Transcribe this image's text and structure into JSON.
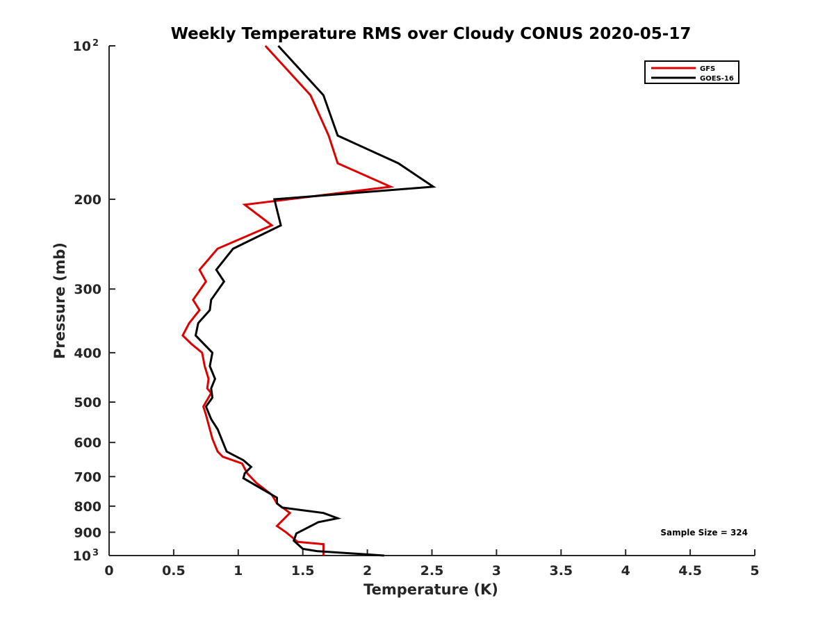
{
  "chart_data": {
    "type": "line",
    "title": "Weekly Temperature RMS over Cloudy CONUS 2020-05-17",
    "xlabel": "Temperature (K)",
    "ylabel": "Pressure (mb)",
    "xlim": [
      0,
      5
    ],
    "ylim": [
      100,
      1000
    ],
    "y_scale": "log",
    "y_reversed": true,
    "grid": false,
    "legend_position": "top-right",
    "x_ticks": [
      "0",
      "0.5",
      "1",
      "1.5",
      "2",
      "2.5",
      "3",
      "3.5",
      "4",
      "4.5",
      "5"
    ],
    "x_tick_values": [
      0,
      0.5,
      1,
      1.5,
      2,
      2.5,
      3,
      3.5,
      4,
      4.5,
      5
    ],
    "y_ticks": [
      {
        "value": 100,
        "label": "10",
        "sup": "2"
      },
      {
        "value": 200,
        "label": "200"
      },
      {
        "value": 300,
        "label": "300"
      },
      {
        "value": 400,
        "label": "400"
      },
      {
        "value": 500,
        "label": "500"
      },
      {
        "value": 600,
        "label": "600"
      },
      {
        "value": 700,
        "label": "700"
      },
      {
        "value": 800,
        "label": "800"
      },
      {
        "value": 900,
        "label": "900"
      },
      {
        "value": 1000,
        "label": "10",
        "sup": "3"
      }
    ],
    "annotation": "Sample Size = 324",
    "series": [
      {
        "name": "GFS",
        "color": "#dd0000",
        "points": [
          [
            1.21,
            100
          ],
          [
            1.56,
            125
          ],
          [
            1.7,
            150
          ],
          [
            1.77,
            170
          ],
          [
            2.18,
            189
          ],
          [
            1.05,
            205
          ],
          [
            1.26,
            225
          ],
          [
            0.84,
            250
          ],
          [
            0.7,
            275
          ],
          [
            0.75,
            290
          ],
          [
            0.65,
            315
          ],
          [
            0.7,
            330
          ],
          [
            0.62,
            350
          ],
          [
            0.57,
            370
          ],
          [
            0.64,
            385
          ],
          [
            0.72,
            400
          ],
          [
            0.74,
            425
          ],
          [
            0.77,
            450
          ],
          [
            0.76,
            470
          ],
          [
            0.79,
            480
          ],
          [
            0.73,
            510
          ],
          [
            0.75,
            530
          ],
          [
            0.78,
            565
          ],
          [
            0.8,
            590
          ],
          [
            0.84,
            625
          ],
          [
            0.88,
            640
          ],
          [
            1.03,
            660
          ],
          [
            1.07,
            690
          ],
          [
            1.14,
            720
          ],
          [
            1.26,
            760
          ],
          [
            1.3,
            790
          ],
          [
            1.4,
            825
          ],
          [
            1.3,
            875
          ],
          [
            1.37,
            900
          ],
          [
            1.46,
            940
          ],
          [
            1.66,
            950
          ],
          [
            1.66,
            1000
          ]
        ]
      },
      {
        "name": "GOES-16",
        "color": "#000000",
        "points": [
          [
            1.31,
            100
          ],
          [
            1.66,
            125
          ],
          [
            1.77,
            150
          ],
          [
            2.24,
            170
          ],
          [
            2.51,
            189
          ],
          [
            1.28,
            200
          ],
          [
            1.33,
            225
          ],
          [
            0.96,
            250
          ],
          [
            0.83,
            275
          ],
          [
            0.89,
            290
          ],
          [
            0.79,
            315
          ],
          [
            0.78,
            330
          ],
          [
            0.69,
            350
          ],
          [
            0.67,
            370
          ],
          [
            0.8,
            400
          ],
          [
            0.78,
            425
          ],
          [
            0.82,
            450
          ],
          [
            0.79,
            470
          ],
          [
            0.8,
            490
          ],
          [
            0.75,
            510
          ],
          [
            0.79,
            540
          ],
          [
            0.84,
            565
          ],
          [
            0.91,
            625
          ],
          [
            1.04,
            650
          ],
          [
            1.1,
            670
          ],
          [
            1.05,
            690
          ],
          [
            1.04,
            705
          ],
          [
            1.3,
            770
          ],
          [
            1.3,
            790
          ],
          [
            1.34,
            805
          ],
          [
            1.66,
            825
          ],
          [
            1.77,
            845
          ],
          [
            1.62,
            860
          ],
          [
            1.45,
            905
          ],
          [
            1.43,
            935
          ],
          [
            1.5,
            970
          ],
          [
            1.61,
            980
          ],
          [
            2.13,
            1000
          ]
        ]
      }
    ]
  }
}
